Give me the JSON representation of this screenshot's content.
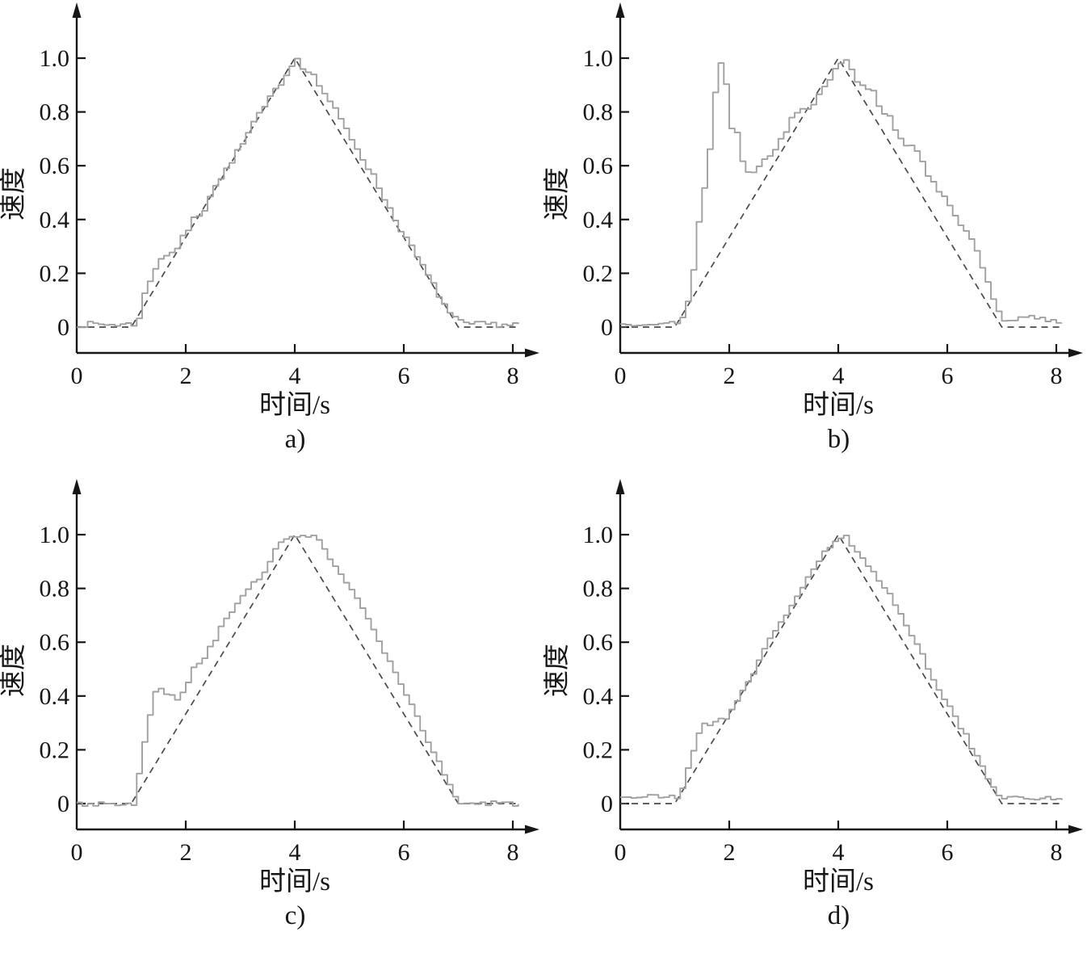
{
  "figure": {
    "background_color": "#ffffff",
    "axis_color": "#161616",
    "measured_color": "#a0a0a0",
    "reference_color": "#4a4a4a",
    "text_color": "#161616"
  },
  "chart_data": [
    {
      "id": "a",
      "caption": "a)",
      "type": "line",
      "title": "",
      "xlabel": "时间/s",
      "ylabel": "速度",
      "xlim": [
        0,
        8.3
      ],
      "ylim": [
        -0.12,
        1.25
      ],
      "x_ticks": [
        "0",
        "2",
        "4",
        "6",
        "8"
      ],
      "x_tick_values": [
        0,
        2,
        4,
        6,
        8
      ],
      "y_ticks": [
        "0",
        "0.2",
        "0.4",
        "0.6",
        "0.8",
        "1.0"
      ],
      "y_tick_values": [
        0,
        0.2,
        0.4,
        0.6,
        0.8,
        1.0
      ],
      "grid": false,
      "legend": "none",
      "series": [
        {
          "name": "reference",
          "style": "dashed",
          "points": [
            [
              0,
              0
            ],
            [
              1,
              0
            ],
            [
              4,
              1
            ],
            [
              7,
              0
            ],
            [
              8.1,
              0
            ]
          ]
        },
        {
          "name": "measured",
          "style": "staircase",
          "step": 0.1,
          "noise": 0.011,
          "seed": 7,
          "points": [
            [
              0,
              0.01
            ],
            [
              1.0,
              0.01
            ],
            [
              1.1,
              0.04
            ],
            [
              1.2,
              0.12
            ],
            [
              1.3,
              0.17
            ],
            [
              1.45,
              0.25
            ],
            [
              1.6,
              0.27
            ],
            [
              1.75,
              0.28
            ],
            [
              1.9,
              0.33
            ],
            [
              2.1,
              0.4
            ],
            [
              2.3,
              0.44
            ],
            [
              2.45,
              0.52
            ],
            [
              2.6,
              0.55
            ],
            [
              2.8,
              0.62
            ],
            [
              3.0,
              0.68
            ],
            [
              3.2,
              0.76
            ],
            [
              3.35,
              0.8
            ],
            [
              3.5,
              0.85
            ],
            [
              3.7,
              0.91
            ],
            [
              3.85,
              0.96
            ],
            [
              4.0,
              1.0
            ],
            [
              4.1,
              0.97
            ],
            [
              4.25,
              0.95
            ],
            [
              4.4,
              0.9
            ],
            [
              4.6,
              0.84
            ],
            [
              4.8,
              0.77
            ],
            [
              5.0,
              0.7
            ],
            [
              5.2,
              0.63
            ],
            [
              5.4,
              0.56
            ],
            [
              5.6,
              0.48
            ],
            [
              5.8,
              0.4
            ],
            [
              6.0,
              0.33
            ],
            [
              6.2,
              0.26
            ],
            [
              6.4,
              0.19
            ],
            [
              6.6,
              0.12
            ],
            [
              6.8,
              0.05
            ],
            [
              6.95,
              0.02
            ],
            [
              7.1,
              0.01
            ],
            [
              8.1,
              0.01
            ]
          ]
        }
      ]
    },
    {
      "id": "b",
      "caption": "b)",
      "type": "line",
      "title": "",
      "xlabel": "时间/s",
      "ylabel": "速度",
      "xlim": [
        0,
        8.3
      ],
      "ylim": [
        -0.12,
        1.25
      ],
      "x_ticks": [
        "0",
        "2",
        "4",
        "6",
        "8"
      ],
      "x_tick_values": [
        0,
        2,
        4,
        6,
        8
      ],
      "y_ticks": [
        "0",
        "0.2",
        "0.4",
        "0.6",
        "0.8",
        "1.0"
      ],
      "y_tick_values": [
        0,
        0.2,
        0.4,
        0.6,
        0.8,
        1.0
      ],
      "grid": false,
      "legend": "none",
      "series": [
        {
          "name": "reference",
          "style": "dashed",
          "points": [
            [
              0,
              0
            ],
            [
              1,
              0
            ],
            [
              4,
              1
            ],
            [
              7,
              0
            ],
            [
              8.1,
              0
            ]
          ]
        },
        {
          "name": "measured",
          "style": "staircase",
          "step": 0.1,
          "noise": 0.011,
          "seed": 13,
          "points": [
            [
              0,
              0.01
            ],
            [
              0.5,
              0.02
            ],
            [
              1.0,
              0.01
            ],
            [
              1.1,
              0.03
            ],
            [
              1.2,
              0.1
            ],
            [
              1.3,
              0.22
            ],
            [
              1.4,
              0.39
            ],
            [
              1.5,
              0.52
            ],
            [
              1.55,
              0.62
            ],
            [
              1.6,
              0.66
            ],
            [
              1.65,
              0.76
            ],
            [
              1.7,
              0.87
            ],
            [
              1.75,
              0.99
            ],
            [
              1.85,
              0.99
            ],
            [
              1.9,
              0.9
            ],
            [
              1.95,
              0.85
            ],
            [
              2.0,
              0.74
            ],
            [
              2.1,
              0.72
            ],
            [
              2.15,
              0.64
            ],
            [
              2.25,
              0.6
            ],
            [
              2.35,
              0.57
            ],
            [
              2.45,
              0.57
            ],
            [
              2.55,
              0.63
            ],
            [
              2.7,
              0.64
            ],
            [
              2.8,
              0.67
            ],
            [
              2.9,
              0.71
            ],
            [
              3.0,
              0.73
            ],
            [
              3.1,
              0.77
            ],
            [
              3.2,
              0.8
            ],
            [
              3.35,
              0.81
            ],
            [
              3.5,
              0.83
            ],
            [
              3.6,
              0.87
            ],
            [
              3.7,
              0.89
            ],
            [
              3.8,
              0.93
            ],
            [
              3.9,
              0.96
            ],
            [
              4.0,
              0.99
            ],
            [
              4.1,
              1.0
            ],
            [
              4.2,
              0.96
            ],
            [
              4.3,
              0.92
            ],
            [
              4.45,
              0.9
            ],
            [
              4.6,
              0.87
            ],
            [
              4.75,
              0.81
            ],
            [
              4.9,
              0.78
            ],
            [
              5.0,
              0.74
            ],
            [
              5.1,
              0.71
            ],
            [
              5.2,
              0.68
            ],
            [
              5.35,
              0.66
            ],
            [
              5.5,
              0.61
            ],
            [
              5.6,
              0.57
            ],
            [
              5.75,
              0.53
            ],
            [
              5.9,
              0.48
            ],
            [
              6.0,
              0.46
            ],
            [
              6.1,
              0.42
            ],
            [
              6.25,
              0.37
            ],
            [
              6.4,
              0.32
            ],
            [
              6.55,
              0.25
            ],
            [
              6.7,
              0.17
            ],
            [
              6.8,
              0.1
            ],
            [
              6.9,
              0.05
            ],
            [
              7.0,
              0.02
            ],
            [
              7.2,
              0.02
            ],
            [
              7.45,
              0.04
            ],
            [
              7.6,
              0.03
            ],
            [
              8.1,
              0.02
            ]
          ]
        }
      ]
    },
    {
      "id": "c",
      "caption": "c)",
      "type": "line",
      "title": "",
      "xlabel": "时间/s",
      "ylabel": "速度",
      "xlim": [
        0,
        8.3
      ],
      "ylim": [
        -0.12,
        1.25
      ],
      "x_ticks": [
        "0",
        "2",
        "4",
        "6",
        "8"
      ],
      "x_tick_values": [
        0,
        2,
        4,
        6,
        8
      ],
      "y_ticks": [
        "0",
        "0.2",
        "0.4",
        "0.6",
        "0.8",
        "1.0"
      ],
      "y_tick_values": [
        0,
        0.2,
        0.4,
        0.6,
        0.8,
        1.0
      ],
      "grid": false,
      "legend": "none",
      "series": [
        {
          "name": "reference",
          "style": "dashed",
          "points": [
            [
              0,
              0
            ],
            [
              1,
              0
            ],
            [
              4,
              1
            ],
            [
              7,
              0
            ],
            [
              8.1,
              0
            ]
          ]
        },
        {
          "name": "measured",
          "style": "staircase",
          "step": 0.1,
          "noise": 0.01,
          "seed": 3,
          "points": [
            [
              0,
              0.0
            ],
            [
              1.05,
              0.0
            ],
            [
              1.1,
              0.12
            ],
            [
              1.15,
              0.22
            ],
            [
              1.25,
              0.23
            ],
            [
              1.3,
              0.33
            ],
            [
              1.4,
              0.41
            ],
            [
              1.5,
              0.42
            ],
            [
              1.6,
              0.41
            ],
            [
              1.7,
              0.4
            ],
            [
              1.8,
              0.39
            ],
            [
              1.9,
              0.41
            ],
            [
              2.0,
              0.45
            ],
            [
              2.1,
              0.5
            ],
            [
              2.2,
              0.52
            ],
            [
              2.3,
              0.55
            ],
            [
              2.45,
              0.59
            ],
            [
              2.6,
              0.65
            ],
            [
              2.75,
              0.7
            ],
            [
              2.9,
              0.74
            ],
            [
              3.0,
              0.78
            ],
            [
              3.1,
              0.8
            ],
            [
              3.25,
              0.83
            ],
            [
              3.4,
              0.87
            ],
            [
              3.5,
              0.9
            ],
            [
              3.6,
              0.94
            ],
            [
              3.7,
              0.97
            ],
            [
              3.8,
              0.98
            ],
            [
              3.95,
              0.99
            ],
            [
              4.05,
              0.99
            ],
            [
              4.15,
              1.0
            ],
            [
              4.3,
              1.0
            ],
            [
              4.4,
              0.98
            ],
            [
              4.5,
              0.94
            ],
            [
              4.6,
              0.91
            ],
            [
              4.75,
              0.87
            ],
            [
              4.9,
              0.82
            ],
            [
              5.0,
              0.79
            ],
            [
              5.15,
              0.74
            ],
            [
              5.3,
              0.69
            ],
            [
              5.45,
              0.62
            ],
            [
              5.6,
              0.56
            ],
            [
              5.75,
              0.5
            ],
            [
              5.9,
              0.44
            ],
            [
              6.05,
              0.38
            ],
            [
              6.2,
              0.32
            ],
            [
              6.35,
              0.26
            ],
            [
              6.5,
              0.19
            ],
            [
              6.65,
              0.13
            ],
            [
              6.8,
              0.07
            ],
            [
              6.9,
              0.03
            ],
            [
              7.0,
              0.0
            ],
            [
              8.1,
              0.0
            ]
          ]
        }
      ]
    },
    {
      "id": "d",
      "caption": "d)",
      "type": "line",
      "title": "",
      "xlabel": "时间/s",
      "ylabel": "速度",
      "xlim": [
        0,
        8.3
      ],
      "ylim": [
        -0.12,
        1.25
      ],
      "x_ticks": [
        "0",
        "2",
        "4",
        "6",
        "8"
      ],
      "x_tick_values": [
        0,
        2,
        4,
        6,
        8
      ],
      "y_ticks": [
        "0",
        "0.2",
        "0.4",
        "0.6",
        "0.8",
        "1.0"
      ],
      "y_tick_values": [
        0,
        0.2,
        0.4,
        0.6,
        0.8,
        1.0
      ],
      "grid": false,
      "legend": "none",
      "series": [
        {
          "name": "reference",
          "style": "dashed",
          "points": [
            [
              0,
              0
            ],
            [
              1,
              0
            ],
            [
              4,
              1
            ],
            [
              7,
              0
            ],
            [
              8.1,
              0
            ]
          ]
        },
        {
          "name": "measured",
          "style": "staircase",
          "step": 0.1,
          "noise": 0.01,
          "seed": 21,
          "points": [
            [
              0,
              0.025
            ],
            [
              1.0,
              0.025
            ],
            [
              1.1,
              0.06
            ],
            [
              1.2,
              0.13
            ],
            [
              1.3,
              0.2
            ],
            [
              1.4,
              0.27
            ],
            [
              1.5,
              0.29
            ],
            [
              1.65,
              0.3
            ],
            [
              1.8,
              0.31
            ],
            [
              1.95,
              0.33
            ],
            [
              2.05,
              0.37
            ],
            [
              2.2,
              0.42
            ],
            [
              2.35,
              0.47
            ],
            [
              2.5,
              0.53
            ],
            [
              2.65,
              0.59
            ],
            [
              2.8,
              0.64
            ],
            [
              2.95,
              0.69
            ],
            [
              3.1,
              0.74
            ],
            [
              3.25,
              0.79
            ],
            [
              3.4,
              0.84
            ],
            [
              3.55,
              0.89
            ],
            [
              3.7,
              0.93
            ],
            [
              3.85,
              0.96
            ],
            [
              4.0,
              0.99
            ],
            [
              4.1,
              0.99
            ],
            [
              4.2,
              0.95
            ],
            [
              4.35,
              0.92
            ],
            [
              4.5,
              0.89
            ],
            [
              4.65,
              0.85
            ],
            [
              4.8,
              0.81
            ],
            [
              4.95,
              0.76
            ],
            [
              5.1,
              0.7
            ],
            [
              5.25,
              0.65
            ],
            [
              5.4,
              0.59
            ],
            [
              5.55,
              0.53
            ],
            [
              5.7,
              0.47
            ],
            [
              5.85,
              0.41
            ],
            [
              6.0,
              0.36
            ],
            [
              6.15,
              0.3
            ],
            [
              6.3,
              0.25
            ],
            [
              6.45,
              0.19
            ],
            [
              6.6,
              0.13
            ],
            [
              6.75,
              0.08
            ],
            [
              6.9,
              0.04
            ],
            [
              7.05,
              0.02
            ],
            [
              8.1,
              0.02
            ]
          ]
        }
      ]
    }
  ]
}
